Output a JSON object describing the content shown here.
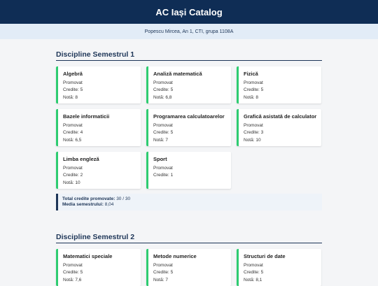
{
  "header": {
    "title": "AC Iași Catalog",
    "student": "Popescu Mircea, An 1, CTI, grupa 1108A"
  },
  "semesters": [
    {
      "title": "Discipline Semestrul 1",
      "courses": [
        {
          "name": "Algebră",
          "status": "Promovat",
          "credits": "Credite: 5",
          "grade": "Notă: 8"
        },
        {
          "name": "Analiză matematică",
          "status": "Promovat",
          "credits": "Credite: 5",
          "grade": "Notă: 6,8"
        },
        {
          "name": "Fizică",
          "status": "Promovat",
          "credits": "Credite: 5",
          "grade": "Notă: 8"
        },
        {
          "name": "Bazele informaticii",
          "status": "Promovat",
          "credits": "Credite: 4",
          "grade": "Notă: 6,5"
        },
        {
          "name": "Programarea calculatoarelor",
          "status": "Promovat",
          "credits": "Credite: 5",
          "grade": "Notă: 7"
        },
        {
          "name": "Grafică asistată de calculator",
          "status": "Promovat",
          "credits": "Credite: 3",
          "grade": "Notă: 10"
        },
        {
          "name": "Limba engleză",
          "status": "Promovat",
          "credits": "Credite: 2",
          "grade": "Notă: 10"
        },
        {
          "name": "Sport",
          "status": "Promovat",
          "credits": "Credite: 1"
        }
      ],
      "summary": {
        "credits_label": "Total credite promovate:",
        "credits_value": "30 / 30",
        "average_label": "Media semestrului:",
        "average_value": "8,04"
      }
    },
    {
      "title": "Discipline Semestrul 2",
      "courses": [
        {
          "name": "Matematici speciale",
          "status": "Promovat",
          "credits": "Credite: 5",
          "grade": "Notă: 7,6"
        },
        {
          "name": "Metode numerice",
          "status": "Promovat",
          "credits": "Credite: 5",
          "grade": "Notă: 7"
        },
        {
          "name": "Structuri de date",
          "status": "Promovat",
          "credits": "Credite: 5",
          "grade": "Notă: 8,1"
        }
      ]
    }
  ]
}
